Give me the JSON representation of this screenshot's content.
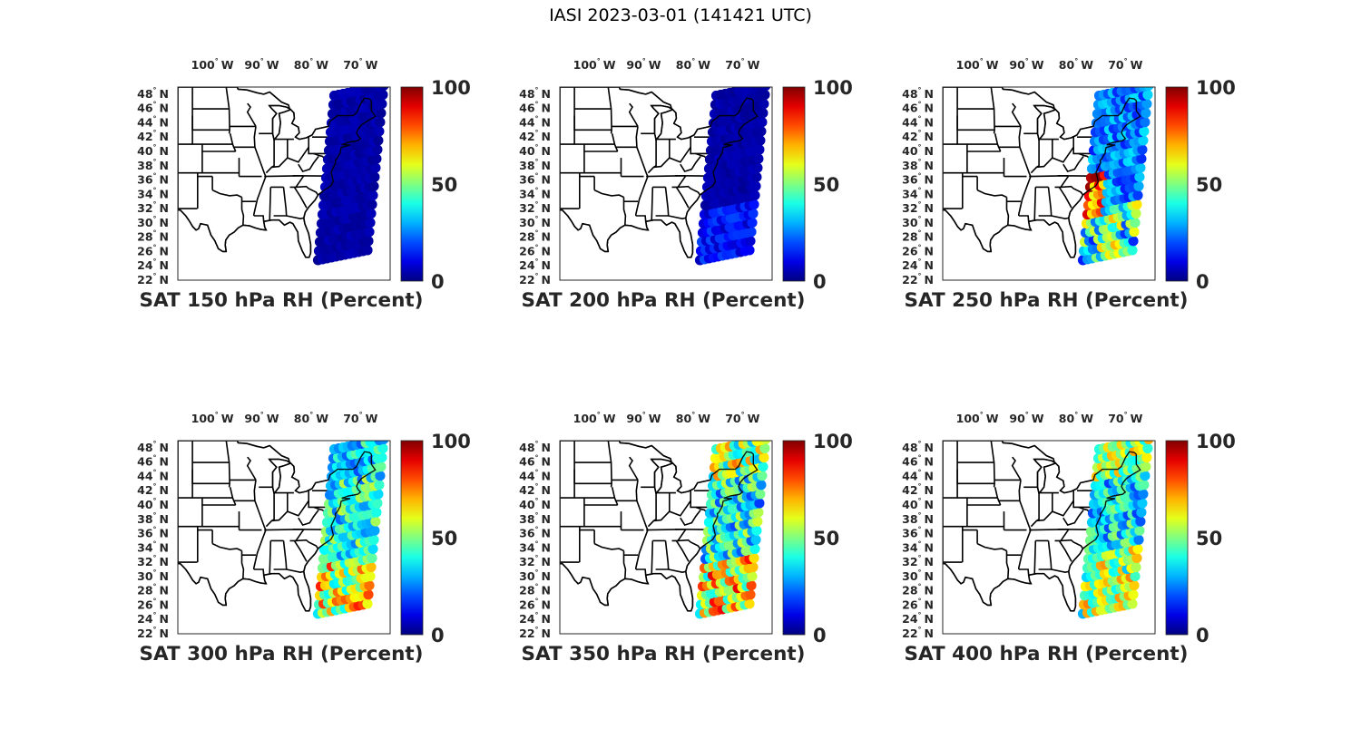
{
  "figure": {
    "title": "IASI 2023-03-01 (141421 UTC)",
    "lon_ticks": [
      "100",
      "90",
      "80",
      "70"
    ],
    "lon_suffix": "W",
    "lat_ticks": [
      "48",
      "46",
      "44",
      "42",
      "40",
      "38",
      "36",
      "34",
      "32",
      "30",
      "28",
      "26",
      "24",
      "22"
    ],
    "lat_suffix": "N",
    "degree_symbol": "°",
    "colorbar": {
      "colormap": "jet",
      "ticks": [
        "100",
        "50",
        "0"
      ],
      "min": 0,
      "max": 100
    }
  },
  "chart_data": [
    {
      "type": "heatmap",
      "title": "SAT 150 hPa RH (Percent)",
      "level_hPa": 150,
      "units": "Percent",
      "xlim": [
        -107,
        -64
      ],
      "ylim": [
        22,
        49
      ],
      "swath_rh_range": [
        0,
        8
      ]
    },
    {
      "type": "heatmap",
      "title": "SAT 200 hPa RH (Percent)",
      "level_hPa": 200,
      "units": "Percent",
      "xlim": [
        -107,
        -64
      ],
      "ylim": [
        22,
        49
      ],
      "swath_rh_range": [
        0,
        25
      ]
    },
    {
      "type": "heatmap",
      "title": "SAT 250 hPa RH (Percent)",
      "level_hPa": 250,
      "units": "Percent",
      "xlim": [
        -107,
        -64
      ],
      "ylim": [
        22,
        49
      ],
      "swath_rh_range": [
        5,
        100
      ]
    },
    {
      "type": "heatmap",
      "title": "SAT 300 hPa RH (Percent)",
      "level_hPa": 300,
      "units": "Percent",
      "xlim": [
        -107,
        -64
      ],
      "ylim": [
        22,
        49
      ],
      "swath_rh_range": [
        15,
        100
      ]
    },
    {
      "type": "heatmap",
      "title": "SAT 350 hPa RH (Percent)",
      "level_hPa": 350,
      "units": "Percent",
      "xlim": [
        -107,
        -64
      ],
      "ylim": [
        22,
        49
      ],
      "swath_rh_range": [
        15,
        100
      ]
    },
    {
      "type": "heatmap",
      "title": "SAT 400 hPa RH (Percent)",
      "level_hPa": 400,
      "units": "Percent",
      "xlim": [
        -107,
        -64
      ],
      "ylim": [
        22,
        49
      ],
      "swath_rh_range": [
        15,
        90
      ]
    }
  ]
}
